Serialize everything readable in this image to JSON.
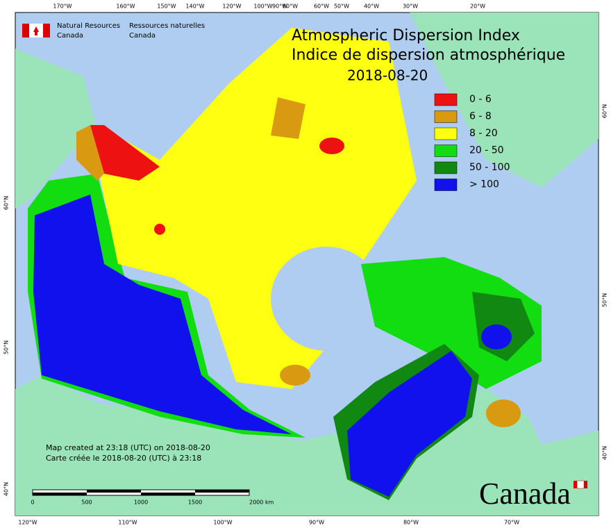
{
  "header": {
    "org_en_1": "Natural Resources",
    "org_en_2": "Canada",
    "org_fr_1": "Ressources naturelles",
    "org_fr_2": "Canada",
    "title_en": "Atmospheric Dispersion Index",
    "title_fr": "Indice de dispersion atmosphérique",
    "date": "2018-08-20"
  },
  "legend": [
    {
      "label": "0 - 6",
      "color": "#ee1111"
    },
    {
      "label": "6 - 8",
      "color": "#d99a12"
    },
    {
      "label": "8 - 20",
      "color": "#ffff11"
    },
    {
      "label": "20 - 50",
      "color": "#11dd11"
    },
    {
      "label": "50 - 100",
      "color": "#118811"
    },
    {
      "label": "> 100",
      "color": "#1111ee"
    }
  ],
  "axes": {
    "top": [
      "170°W",
      "160°W",
      "150°W",
      "140°W",
      "120°W",
      "100°W",
      "90°W",
      "80°W",
      "60°W",
      "50°W",
      "40°W",
      "30°W",
      "20°W"
    ],
    "bottom": [
      "120°W",
      "110°W",
      "100°W",
      "90°W",
      "80°W",
      "70°W"
    ],
    "left": [
      "60°N",
      "50°N",
      "40°N"
    ],
    "right": [
      "60°N",
      "50°N",
      "40°N"
    ]
  },
  "footer": {
    "note_en": "Map created at 23:18 (UTC) on 2018-08-20",
    "note_fr": "Carte créée le 2018-08-20 (UTC) à 23:18",
    "scale": [
      "0",
      "500",
      "1000",
      "1500",
      "2000 km"
    ],
    "wordmark": "Canada"
  }
}
